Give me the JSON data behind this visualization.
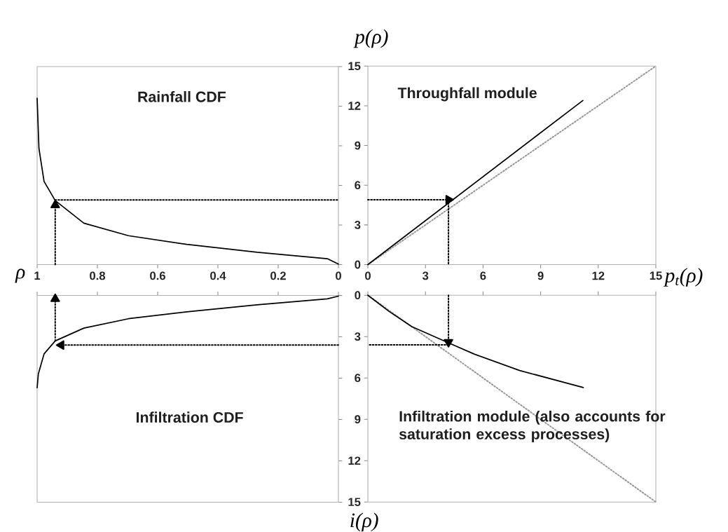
{
  "chart_data": [
    {
      "type": "line",
      "title": "Rainfall CDF",
      "xlabel": "ρ",
      "xlim": [
        1,
        0
      ],
      "xticks": [
        1,
        0.8,
        0.6,
        0.4,
        0.2,
        0
      ],
      "ylim": [
        0,
        15
      ],
      "yticks": [
        0,
        3,
        6,
        9,
        12,
        15
      ],
      "tick_labels": "x",
      "series": [
        {
          "color": "#000000",
          "x": [
            1,
            0.994,
            0.977,
            0.94,
            0.845,
            0.697,
            0.503,
            0.27,
            0.037,
            0
          ],
          "values": [
            12.6,
            8.8,
            6.3,
            4.85,
            3.14,
            2.19,
            1.53,
            0.93,
            0.45,
            0.04
          ]
        },
        {
          "color": "#000000",
          "line_style": "dotted",
          "marker": "triangle",
          "x": [
            0.94,
            0.94
          ],
          "values": [
            0,
            4.5
          ]
        },
        {
          "color": "#000000",
          "line_style": "dotted",
          "x": [
            0.94,
            0
          ],
          "values": [
            4.9,
            4.9
          ]
        }
      ]
    },
    {
      "type": "line",
      "title": "Throughfall module",
      "xlabel": "p$_{t}$(ρ)",
      "ylabel": "p(ρ)",
      "xlim": [
        0,
        15
      ],
      "xticks": [
        0,
        3,
        6,
        9,
        12,
        15
      ],
      "ylim": [
        0,
        15
      ],
      "yticks": [
        0,
        3,
        6,
        9,
        12,
        15
      ],
      "series": [
        {
          "color": "#999999",
          "line_style": "dotted",
          "x": [
            0,
            15
          ],
          "values": [
            0,
            15
          ]
        },
        {
          "color": "#000000",
          "x": [
            0,
            11.2
          ],
          "values": [
            0,
            12.4
          ]
        },
        {
          "color": "#000000",
          "line_style": "dotted",
          "marker": "triangle",
          "x": [
            0,
            4.2
          ],
          "values": [
            4.9,
            4.9
          ]
        },
        {
          "color": "#000000",
          "line_style": "dotted",
          "x": [
            4.2,
            4.2
          ],
          "values": [
            4.9,
            0
          ]
        }
      ]
    },
    {
      "type": "line",
      "title": "Infiltration CDF",
      "xlim": [
        1,
        0
      ],
      "xticks": [
        1,
        0.8,
        0.6,
        0.4,
        0.2,
        0
      ],
      "ylim": [
        15,
        0
      ],
      "yticks": [
        0,
        3,
        6,
        9,
        12,
        15
      ],
      "tick_labels": false,
      "series": [
        {
          "color": "#000000",
          "x": [
            1,
            0.996,
            0.977,
            0.94,
            0.845,
            0.697,
            0.503,
            0.27,
            0.037,
            0
          ],
          "values": [
            6.7,
            5.7,
            4.24,
            3.3,
            2.37,
            1.69,
            1.19,
            0.68,
            0.25,
            0.05
          ]
        },
        {
          "color": "#000000",
          "line_style": "dotted",
          "marker": "triangle",
          "x": [
            0,
            0.92
          ],
          "values": [
            3.6,
            3.6
          ]
        },
        {
          "color": "#000000",
          "line_style": "dotted",
          "marker": "triangle",
          "x": [
            0.94,
            0.94
          ],
          "values": [
            3.3,
            0.25
          ]
        }
      ]
    },
    {
      "type": "line",
      "title": "Infiltration module (also accounts for saturation excess processes)",
      "ylabel": "i(ρ)",
      "xlim": [
        0,
        15
      ],
      "xticks": [
        0,
        3,
        6,
        9,
        12,
        15
      ],
      "ylim": [
        15,
        0
      ],
      "yticks": [
        0,
        3,
        6,
        9,
        12,
        15
      ],
      "tick_labels": "y",
      "series": [
        {
          "color": "#999999",
          "line_style": "dotted",
          "x": [
            0,
            15
          ],
          "values": [
            0,
            15
          ]
        },
        {
          "color": "#000000",
          "x": [
            0,
            1.11,
            2.29,
            4.21,
            5.56,
            7.91,
            11.22
          ],
          "values": [
            0,
            1.18,
            2.28,
            3.46,
            4.28,
            5.46,
            6.7
          ]
        },
        {
          "color": "#000000",
          "line_style": "dotted",
          "marker": "triangle",
          "x": [
            4.2,
            4.2
          ],
          "values": [
            0,
            3.4
          ]
        },
        {
          "color": "#000000",
          "line_style": "dotted",
          "x": [
            4.2,
            0
          ],
          "values": [
            3.6,
            3.6
          ]
        }
      ]
    }
  ]
}
